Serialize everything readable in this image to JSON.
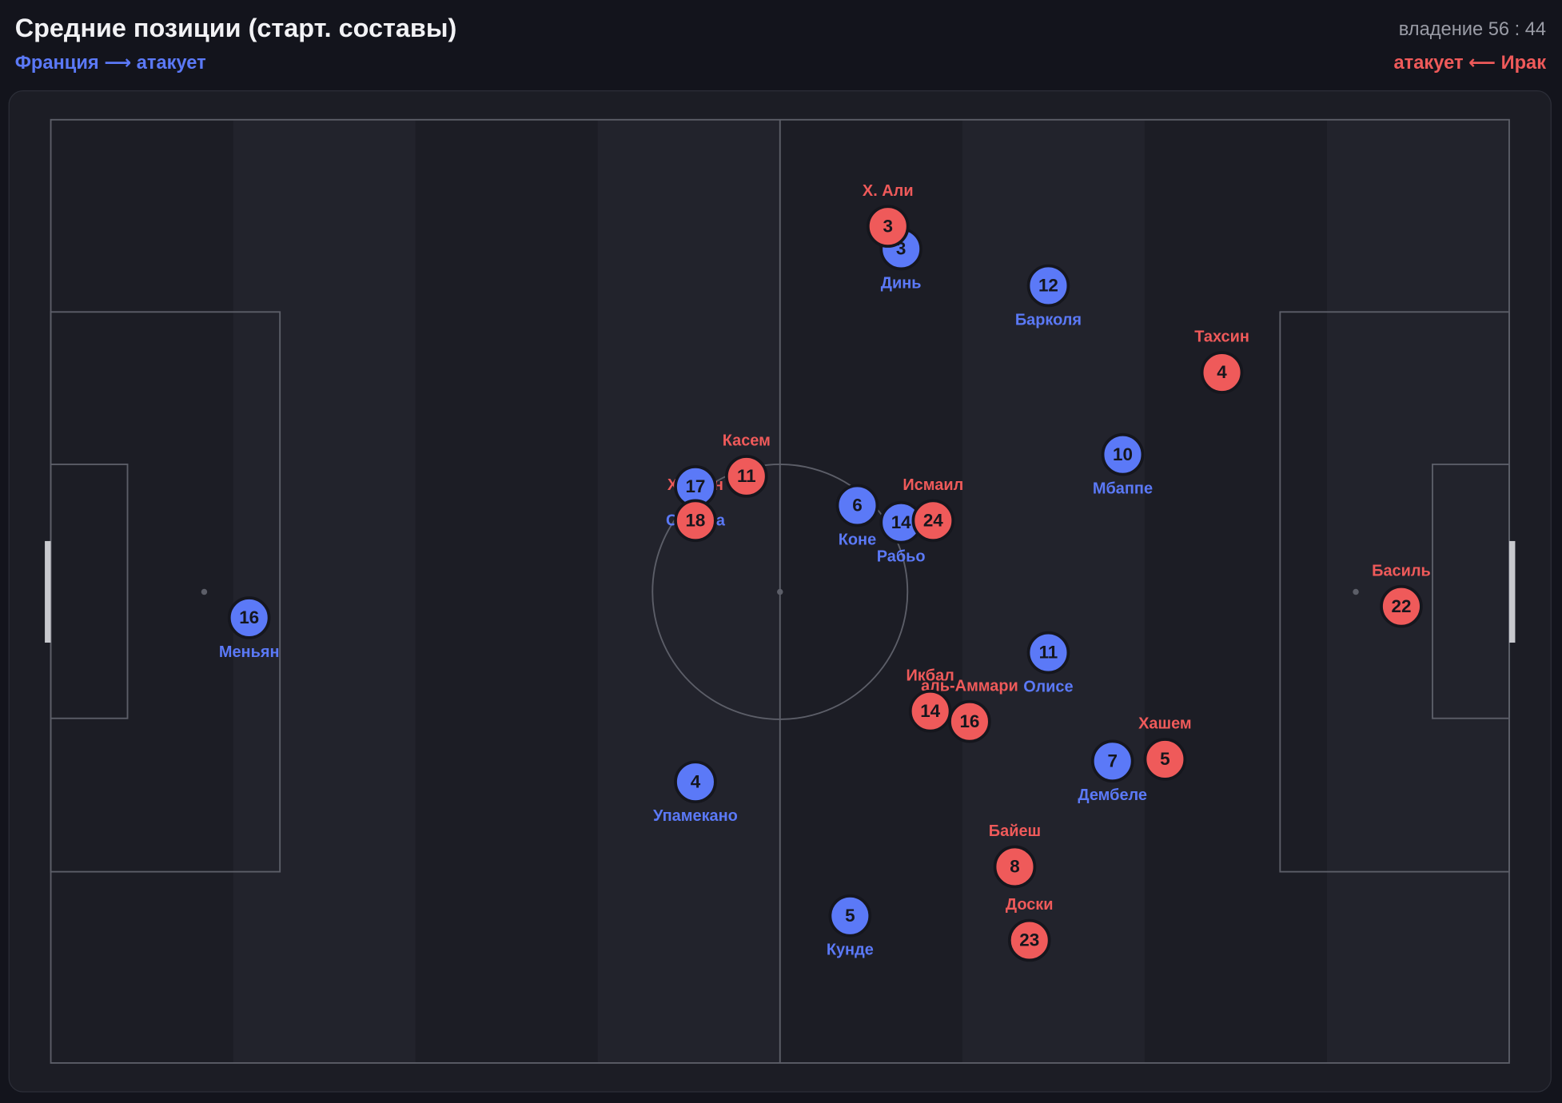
{
  "header": {
    "title": "Средние позиции (старт. составы)",
    "possession": "владение 56 : 44",
    "home_label": "Франция ⟶ атакует",
    "away_label": "атакует ⟵ Ирак"
  },
  "teams": [
    {
      "name": "Франция",
      "color": "#5b79f7",
      "players": [
        {
          "number": 16,
          "name": "Меньян",
          "x": 13.6,
          "y": 52.8
        },
        {
          "number": 3,
          "name": "Динь",
          "x": 58.3,
          "y": 13.7
        },
        {
          "number": 12,
          "name": "Барколя",
          "x": 68.4,
          "y": 17.6
        },
        {
          "number": 10,
          "name": "Мбаппе",
          "x": 73.5,
          "y": 35.5
        },
        {
          "number": 17,
          "name": "Салиба",
          "x": 44.2,
          "y": 38.9
        },
        {
          "number": 6,
          "name": "Коне",
          "x": 55.3,
          "y": 40.9
        },
        {
          "number": 14,
          "name": "Рабьо",
          "x": 58.3,
          "y": 42.7
        },
        {
          "number": 11,
          "name": "Олисе",
          "x": 68.4,
          "y": 56.5
        },
        {
          "number": 7,
          "name": "Дембеле",
          "x": 72.8,
          "y": 68.0
        },
        {
          "number": 4,
          "name": "Упамекано",
          "x": 44.2,
          "y": 70.2
        },
        {
          "number": 5,
          "name": "Кунде",
          "x": 54.8,
          "y": 84.4
        }
      ]
    },
    {
      "name": "Ирак",
      "color": "#ef5a5a",
      "players": [
        {
          "number": 3,
          "name": "Х. Али",
          "x": 57.4,
          "y": 11.3
        },
        {
          "number": 4,
          "name": "Тахсин",
          "x": 80.3,
          "y": 26.8
        },
        {
          "number": 11,
          "name": "Касем",
          "x": 47.7,
          "y": 37.8
        },
        {
          "number": 18,
          "name": "Хусейн",
          "x": 44.2,
          "y": 42.5
        },
        {
          "number": 24,
          "name": "Исмаил",
          "x": 60.5,
          "y": 42.5
        },
        {
          "number": 22,
          "name": "Басиль",
          "x": 92.6,
          "y": 51.6
        },
        {
          "number": 14,
          "name": "Икбал",
          "x": 60.3,
          "y": 62.7
        },
        {
          "number": 16,
          "name": "аль-Аммари",
          "x": 63.0,
          "y": 63.8
        },
        {
          "number": 5,
          "name": "Хашем",
          "x": 76.4,
          "y": 67.8
        },
        {
          "number": 8,
          "name": "Байеш",
          "x": 66.1,
          "y": 79.2
        },
        {
          "number": 23,
          "name": "Доски",
          "x": 67.1,
          "y": 87.0
        }
      ]
    }
  ]
}
